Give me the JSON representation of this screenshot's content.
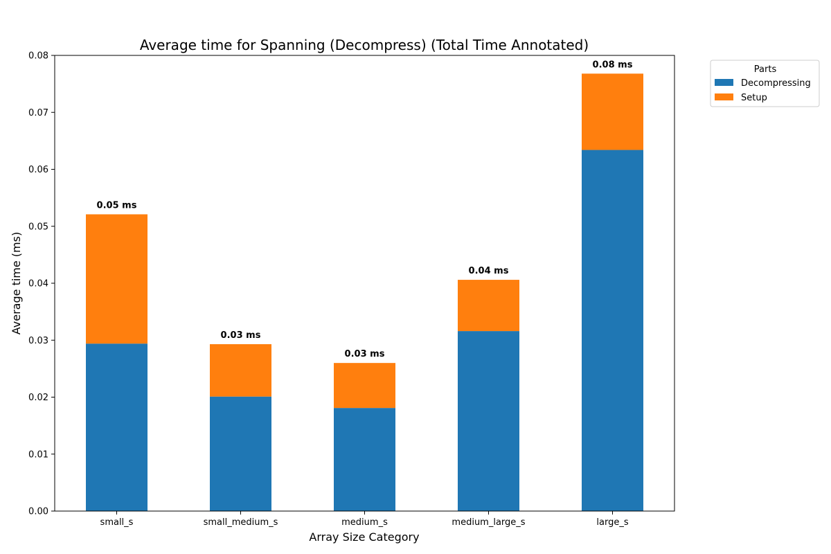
{
  "chart_data": {
    "type": "bar",
    "stacked": true,
    "title": "Average time for Spanning (Decompress) (Total Time Annotated)",
    "xlabel": "Array Size Category",
    "ylabel": "Average time (ms)",
    "ylim": [
      0,
      0.08
    ],
    "yticks": [
      "0.00",
      "0.01",
      "0.02",
      "0.03",
      "0.04",
      "0.05",
      "0.06",
      "0.07",
      "0.08"
    ],
    "categories": [
      "small_s",
      "small_medium_s",
      "medium_s",
      "medium_large_s",
      "large_s"
    ],
    "series": [
      {
        "name": "Decompressing",
        "color": "#1f77b4",
        "values": [
          0.0294,
          0.0201,
          0.0181,
          0.0316,
          0.0634
        ]
      },
      {
        "name": "Setup",
        "color": "#ff7f0e",
        "values": [
          0.0227,
          0.0092,
          0.0079,
          0.009,
          0.0134
        ]
      }
    ],
    "total_labels": [
      "0.05 ms",
      "0.03 ms",
      "0.03 ms",
      "0.04 ms",
      "0.08 ms"
    ],
    "legend": {
      "title": "Parts",
      "placement": "outside-top-right"
    },
    "grid": false
  }
}
